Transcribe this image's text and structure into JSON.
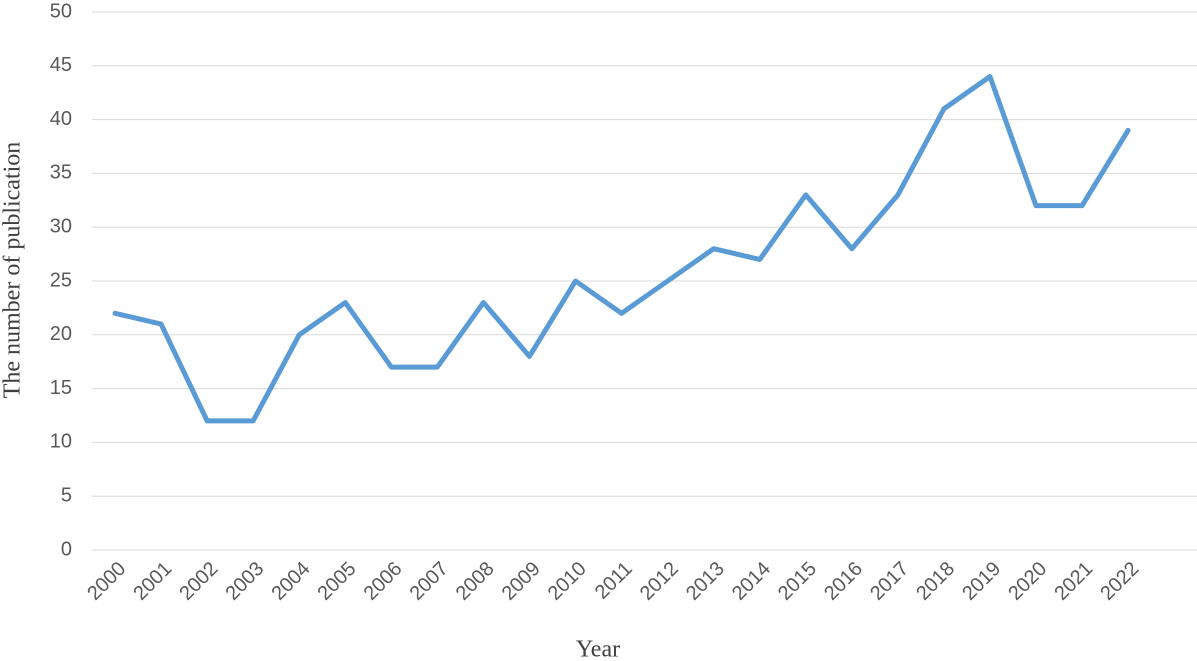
{
  "chart_data": {
    "type": "line",
    "x_label": "Year",
    "y_label": "The number of publication",
    "categories": [
      "2000",
      "2001",
      "2002",
      "2003",
      "2004",
      "2005",
      "2006",
      "2007",
      "2008",
      "2009",
      "2010",
      "2011",
      "2012",
      "2013",
      "2014",
      "2015",
      "2016",
      "2017",
      "2018",
      "2019",
      "2020",
      "2021",
      "2022"
    ],
    "values": [
      22,
      21,
      12,
      12,
      20,
      23,
      17,
      17,
      23,
      18,
      25,
      22,
      25,
      28,
      27,
      33,
      28,
      33,
      41,
      44,
      32,
      32,
      39
    ],
    "color": "#5b9bd5",
    "ylim": [
      0,
      50
    ],
    "yticks": [
      0,
      5,
      10,
      15,
      20,
      25,
      30,
      35,
      40,
      45,
      50
    ],
    "grid": true
  }
}
